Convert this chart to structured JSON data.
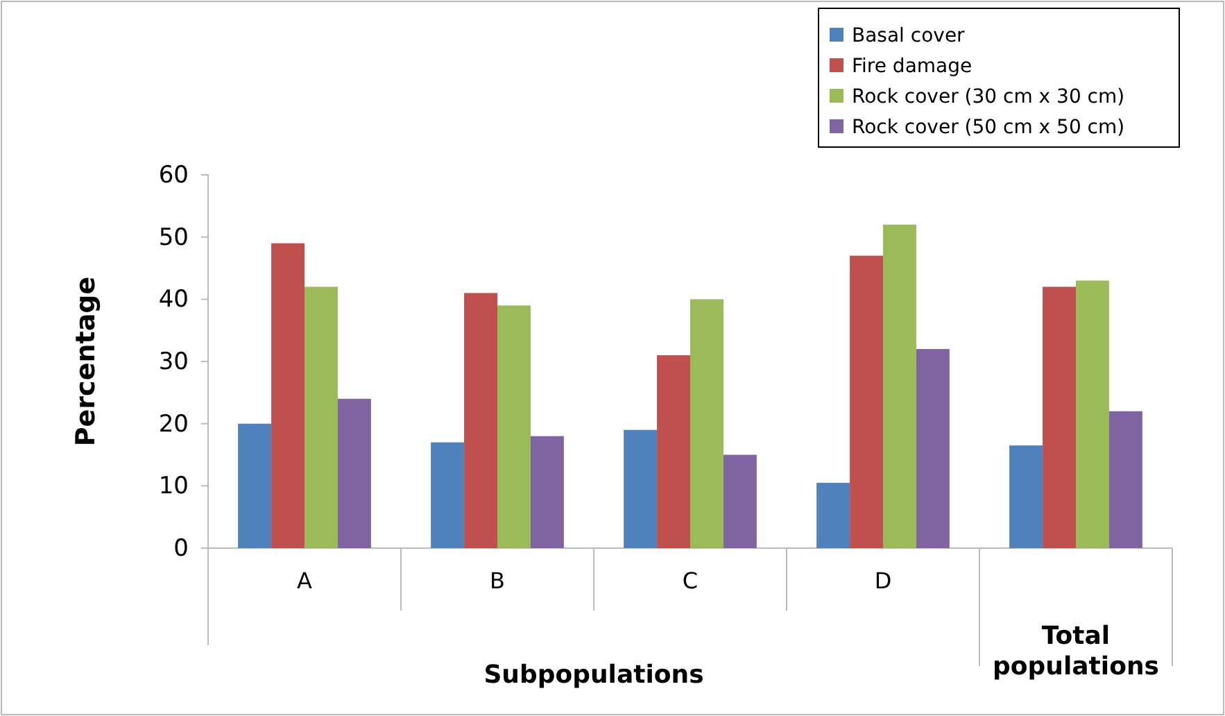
{
  "chart_data": {
    "type": "bar",
    "xlabel": "Subpopulations",
    "ylabel": "Percentage",
    "categories": [
      "A",
      "B",
      "C",
      "D",
      null
    ],
    "annotations": [
      "Total populations"
    ],
    "series": [
      {
        "name": "Basal cover",
        "color": "#4f81bd",
        "values": [
          20,
          17,
          19,
          10.5,
          16.5
        ]
      },
      {
        "name": "Fire damage",
        "color": "#c0504d",
        "values": [
          49,
          41,
          31,
          47,
          42
        ]
      },
      {
        "name": "Rock cover (30 cm x 30 cm)",
        "color": "#9bbb59",
        "values": [
          42,
          39,
          40,
          52,
          43
        ]
      },
      {
        "name": "Rock cover (50 cm x 50 cm)",
        "color": "#8064a2",
        "values": [
          24,
          18,
          15,
          32,
          22
        ]
      }
    ],
    "ylim": [
      0,
      60
    ],
    "yticks": [
      0,
      10,
      20,
      30,
      40,
      50,
      60
    ],
    "grid": false,
    "legend": "top right"
  }
}
